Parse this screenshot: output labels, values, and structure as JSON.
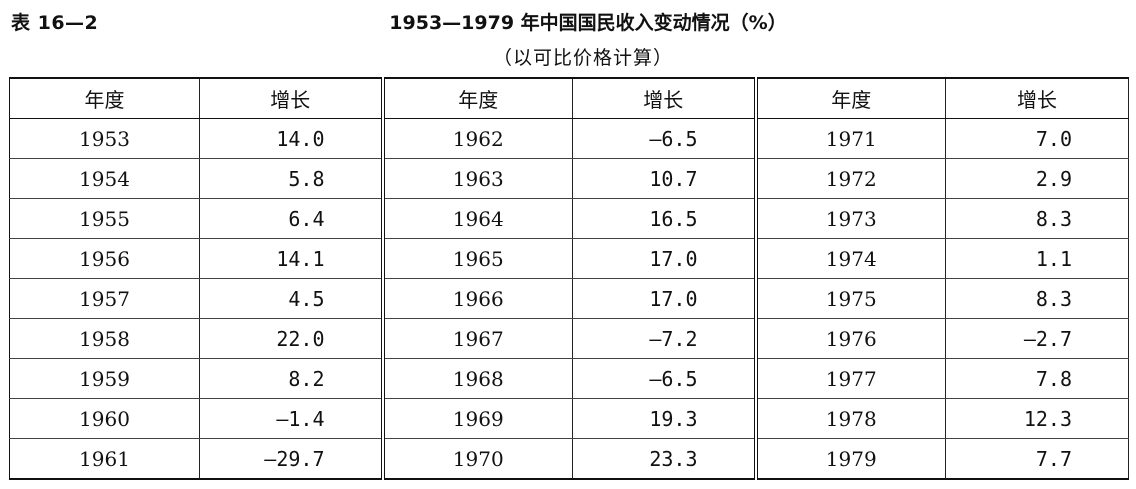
{
  "header": {
    "table_label": "表 16—2",
    "title": "1953—1979 年中国国民收入变动情况（%）",
    "subtitle": "（以可比价格计算）"
  },
  "table": {
    "columns": [
      "年度",
      "增长",
      "年度",
      "增长",
      "年度",
      "增长"
    ],
    "rows": [
      [
        "1953",
        "14.0",
        "1962",
        "—6.5",
        "1971",
        "7.0"
      ],
      [
        "1954",
        "5.8",
        "1963",
        "10.7",
        "1972",
        "2.9"
      ],
      [
        "1955",
        "6.4",
        "1964",
        "16.5",
        "1973",
        "8.3"
      ],
      [
        "1956",
        "14.1",
        "1965",
        "17.0",
        "1974",
        "1.1"
      ],
      [
        "1957",
        "4.5",
        "1966",
        "17.0",
        "1975",
        "8.3"
      ],
      [
        "1958",
        "22.0",
        "1967",
        "—7.2",
        "1976",
        "—2.7"
      ],
      [
        "1959",
        "8.2",
        "1968",
        "—6.5",
        "1977",
        "7.8"
      ],
      [
        "1960",
        "—1.4",
        "1969",
        "19.3",
        "1978",
        "12.3"
      ],
      [
        "1961",
        "—29.7",
        "1970",
        "23.3",
        "1979",
        "7.7"
      ]
    ]
  }
}
